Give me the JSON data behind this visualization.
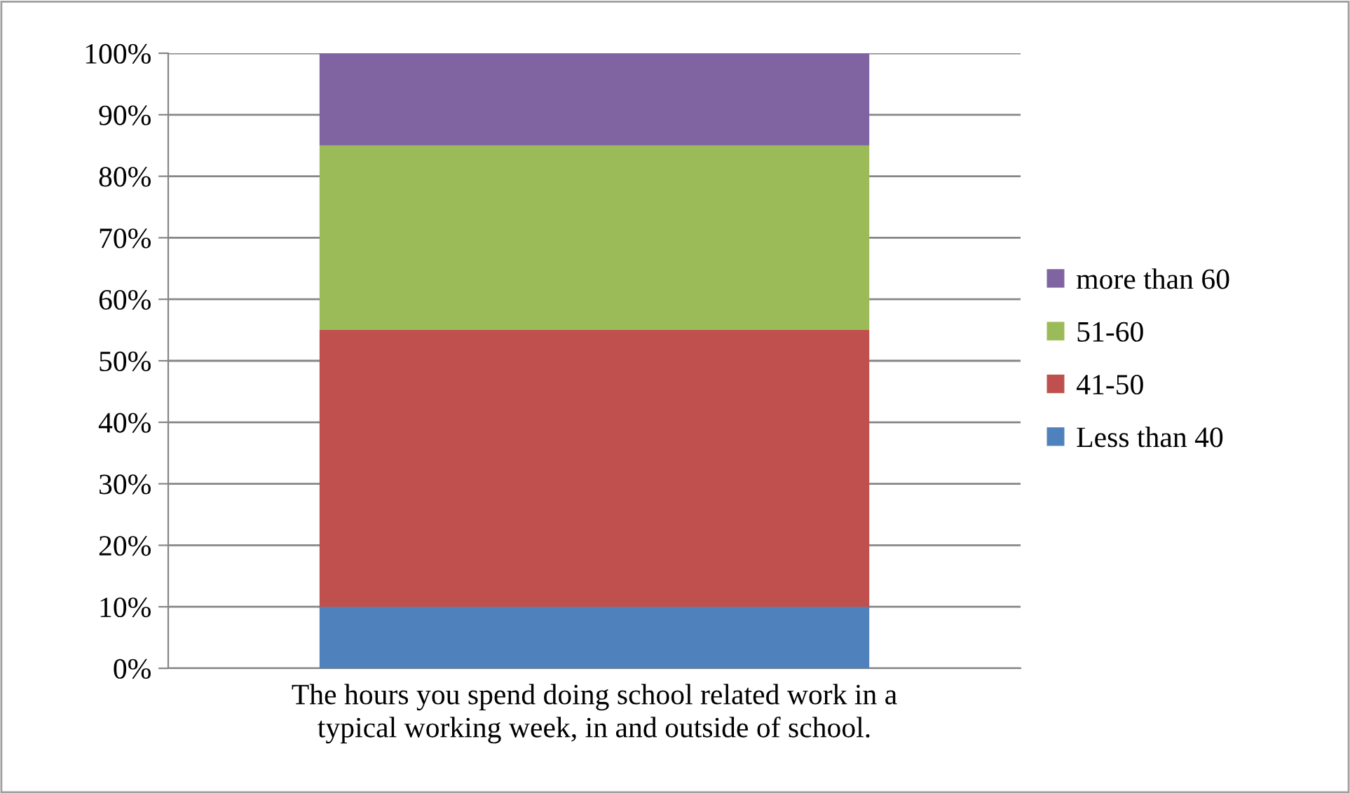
{
  "chart_data": {
    "type": "bar",
    "stacked": true,
    "categories": [
      "The hours you spend doing school related work in a\ntypical working week, in and outside of school."
    ],
    "series": [
      {
        "name": "Less than 40",
        "color": "#4f81bd",
        "values": [
          10
        ]
      },
      {
        "name": "41-50",
        "color": "#c0504d",
        "values": [
          45
        ]
      },
      {
        "name": "51-60",
        "color": "#9bbb59",
        "values": [
          30
        ]
      },
      {
        "name": "more than 60",
        "color": "#8064a2",
        "values": [
          15
        ]
      }
    ],
    "ylim": [
      0,
      100
    ],
    "yticks": [
      {
        "value": 0,
        "label": "0%"
      },
      {
        "value": 10,
        "label": "10%"
      },
      {
        "value": 20,
        "label": "20%"
      },
      {
        "value": 30,
        "label": "30%"
      },
      {
        "value": 40,
        "label": "40%"
      },
      {
        "value": 50,
        "label": "50%"
      },
      {
        "value": 60,
        "label": "60%"
      },
      {
        "value": 70,
        "label": "70%"
      },
      {
        "value": 80,
        "label": "80%"
      },
      {
        "value": 90,
        "label": "90%"
      },
      {
        "value": 100,
        "label": "100%"
      }
    ],
    "grid": "y",
    "legend": "right"
  }
}
